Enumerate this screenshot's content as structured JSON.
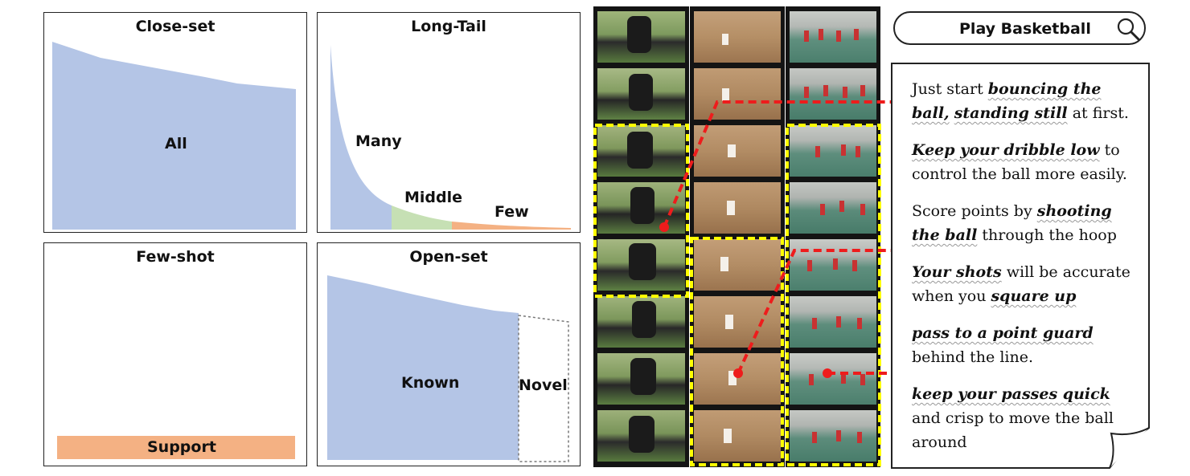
{
  "panels": {
    "close_set": {
      "title": "Close-set",
      "label": "All"
    },
    "long_tail": {
      "title": "Long-Tail",
      "many": "Many",
      "middle": "Middle",
      "few": "Few"
    },
    "few_shot": {
      "title": "Few-shot",
      "support": "Support"
    },
    "open_set": {
      "title": "Open-set",
      "known": "Known",
      "novel": "Novel"
    }
  },
  "colors": {
    "blue": "#b4c5e6",
    "green": "#c6e0b4",
    "orange": "#f4b183",
    "film": "#141414",
    "highlight": "#ffff00",
    "connector": "#ee1c1c"
  },
  "search": {
    "query": "Play Basketball",
    "icon": "search-icon"
  },
  "notes": [
    {
      "parts": [
        [
          "Just start ",
          false
        ],
        [
          "bouncing the ball,",
          true
        ],
        [
          " ",
          false
        ],
        [
          "standing still",
          true
        ],
        [
          " at first.",
          false
        ]
      ]
    },
    {
      "parts": [
        [
          "Keep your dribble low",
          true
        ],
        [
          " to control the ball more easily.",
          false
        ]
      ]
    },
    {
      "parts": [
        [
          "Score points by ",
          false
        ],
        [
          "shooting the ball",
          true
        ],
        [
          " through the hoop",
          false
        ]
      ]
    },
    {
      "parts": [
        [
          "Your shots",
          true
        ],
        [
          " will be accurate when you ",
          false
        ],
        [
          "square up",
          true
        ]
      ]
    },
    {
      "parts": [
        [
          "pass to a point guard",
          true
        ],
        [
          " behind the line.",
          false
        ]
      ]
    },
    {
      "parts": [
        [
          "keep your passes quick",
          true
        ],
        [
          " and crisp to move the ball around",
          false
        ]
      ]
    }
  ]
}
